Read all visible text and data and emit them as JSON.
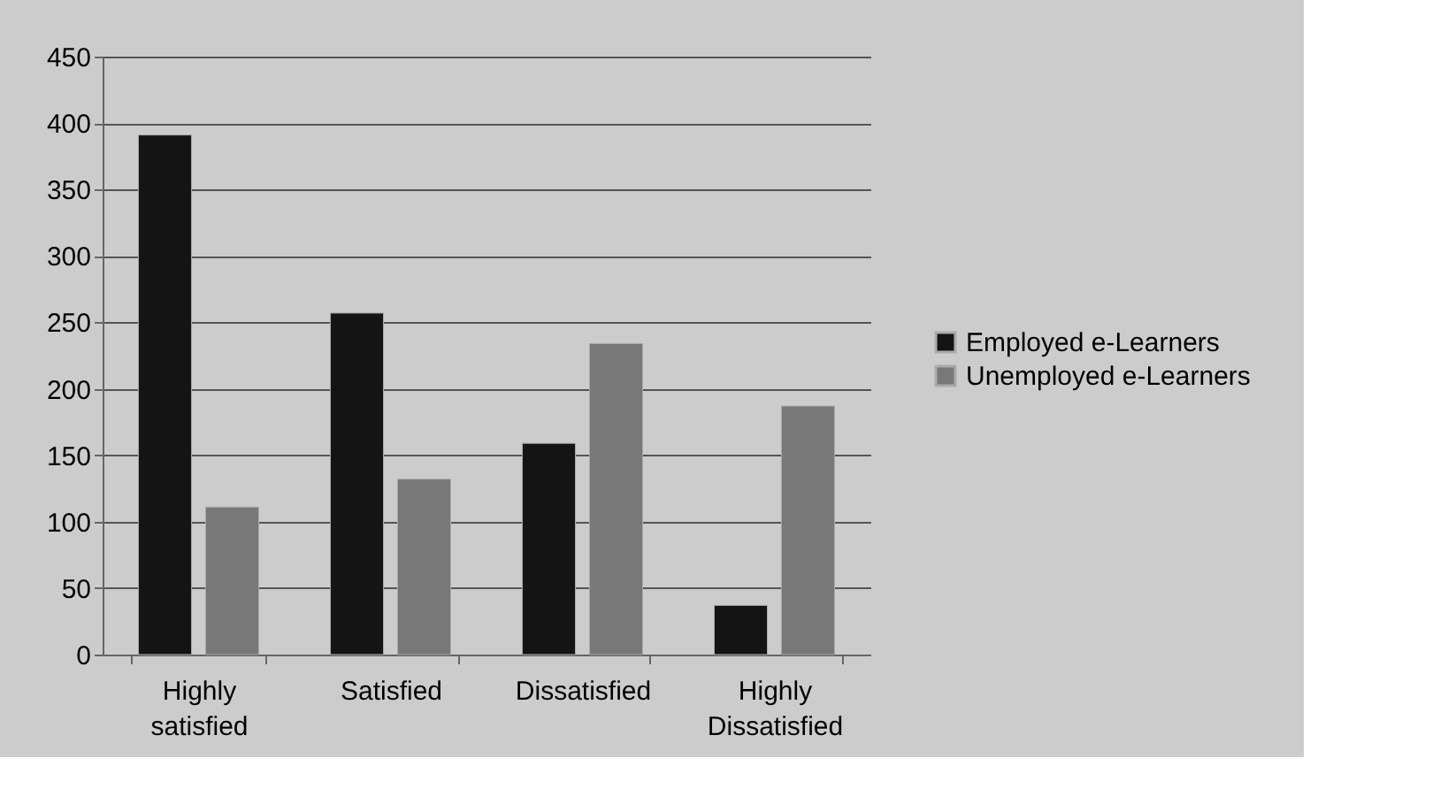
{
  "chart_data": {
    "type": "bar",
    "categories": [
      "Highly satisfied",
      "Satisfied",
      "Dissatisfied",
      "Highly Dissatisfied"
    ],
    "series": [
      {
        "name": "Employed e-Learners",
        "color": "#141414",
        "values": [
          391,
          257,
          159,
          37
        ]
      },
      {
        "name": "Unemployed e-Learners",
        "color": "#787878",
        "values": [
          111,
          132,
          234,
          187
        ]
      }
    ],
    "ylim": [
      0,
      450
    ],
    "yticks": [
      0,
      50,
      100,
      150,
      200,
      250,
      300,
      350,
      400,
      450
    ],
    "grid": "y",
    "legend": "right"
  }
}
